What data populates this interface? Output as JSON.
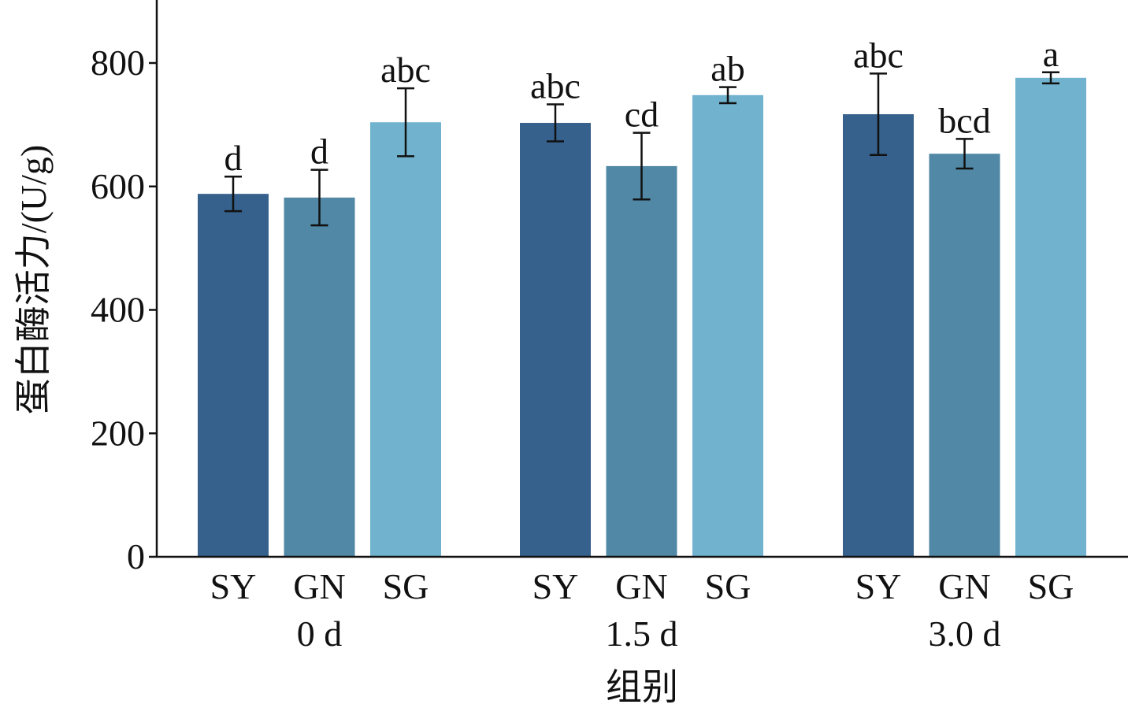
{
  "chart_data": {
    "type": "bar",
    "title": "",
    "xlabel": "组别",
    "ylabel": "蛋白酶活力/(U/g)",
    "ylim": [
      0,
      900
    ],
    "yticks": [
      0,
      200,
      400,
      600,
      800
    ],
    "grid": false,
    "groups": [
      "0 d",
      "1.5 d",
      "3.0 d"
    ],
    "categories": [
      "SY",
      "GN",
      "SG"
    ],
    "colors": [
      "#36618C",
      "#5088A5",
      "#71B3CE"
    ],
    "bars": [
      {
        "group": "0 d",
        "category": "SY",
        "value": 588,
        "error": 28,
        "sig": "d"
      },
      {
        "group": "0 d",
        "category": "GN",
        "value": 582,
        "error": 45,
        "sig": "d"
      },
      {
        "group": "0 d",
        "category": "SG",
        "value": 704,
        "error": 55,
        "sig": "abc"
      },
      {
        "group": "1.5 d",
        "category": "SY",
        "value": 703,
        "error": 30,
        "sig": "abc"
      },
      {
        "group": "1.5 d",
        "category": "GN",
        "value": 633,
        "error": 54,
        "sig": "cd"
      },
      {
        "group": "1.5 d",
        "category": "SG",
        "value": 748,
        "error": 13,
        "sig": "ab"
      },
      {
        "group": "3.0 d",
        "category": "SY",
        "value": 717,
        "error": 66,
        "sig": "abc"
      },
      {
        "group": "3.0 d",
        "category": "GN",
        "value": 653,
        "error": 24,
        "sig": "bcd"
      },
      {
        "group": "3.0 d",
        "category": "SG",
        "value": 776,
        "error": 9,
        "sig": "a"
      }
    ]
  }
}
